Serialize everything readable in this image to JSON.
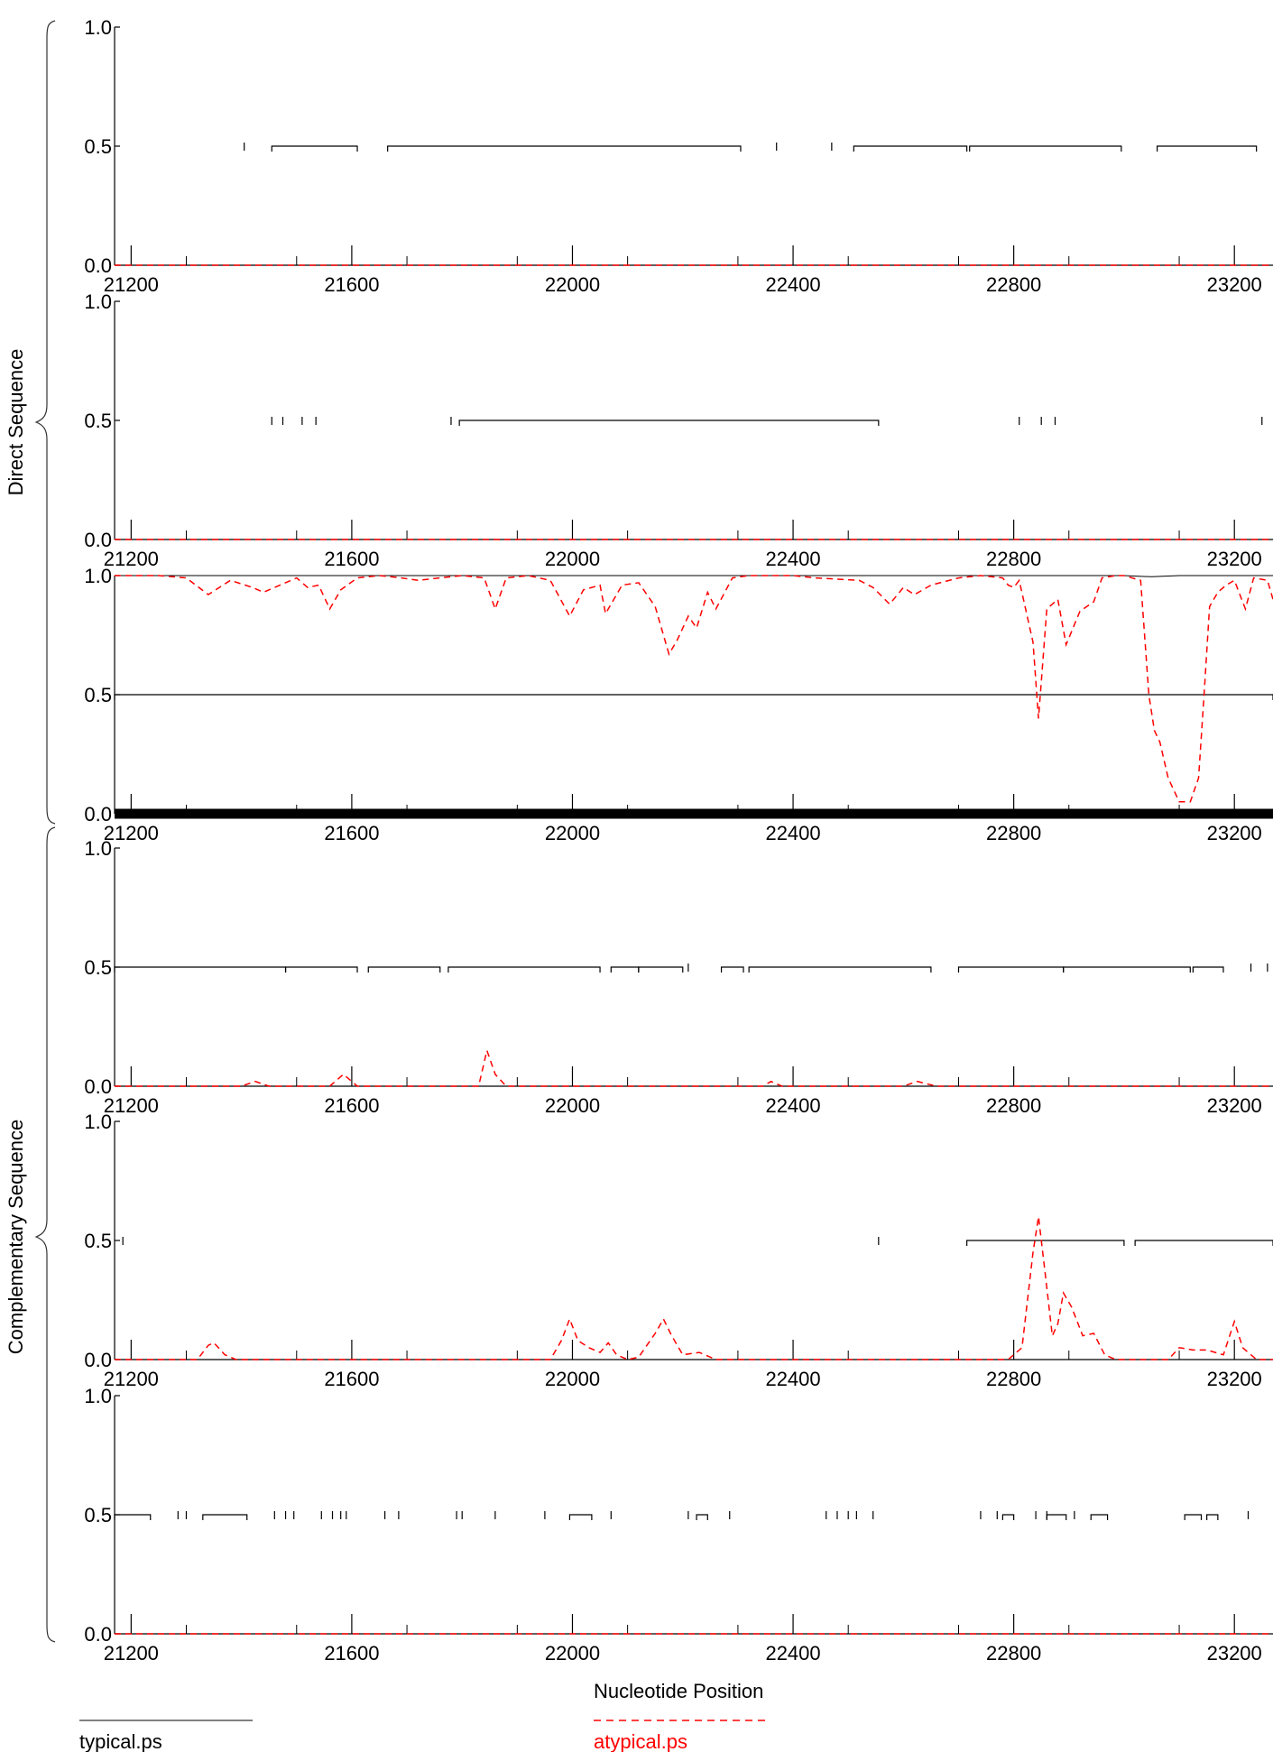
{
  "chart_data": {
    "type": "line",
    "xlabel": "Nucleotide Position",
    "x_ticks": [
      21200,
      21600,
      22000,
      22400,
      22800,
      23200
    ],
    "xlim": [
      21170,
      23270
    ],
    "y_ticks": [
      "0.0",
      "0.5",
      "1.0"
    ],
    "ylim": [
      0,
      1
    ],
    "groups": [
      {
        "label": "Direct Sequence",
        "panels": [
          0,
          1,
          2
        ]
      },
      {
        "label": "Complementary Sequence",
        "panels": [
          3,
          4,
          5
        ]
      }
    ],
    "legend": {
      "placement": "bottom",
      "items": [
        {
          "name": "typical.ps",
          "style": "solid",
          "color": "#000000"
        },
        {
          "name": "atypical.ps",
          "style": "dashed",
          "color": "#ff0000"
        }
      ]
    },
    "panels": [
      {
        "typical": [
          [
            21170,
            0.0
          ],
          [
            23270,
            0.0
          ]
        ],
        "atypical": [
          [
            21170,
            0.0
          ],
          [
            23270,
            0.0
          ]
        ],
        "segments": [
          [
            21455,
            21610
          ],
          [
            21665,
            22305
          ],
          [
            22510,
            22715
          ],
          [
            22720,
            22995
          ],
          [
            23060,
            23240
          ]
        ],
        "stops": [
          21405,
          22370,
          22470
        ]
      },
      {
        "typical": [
          [
            21170,
            0.0
          ],
          [
            23270,
            0.0
          ]
        ],
        "atypical": [
          [
            21170,
            0.0
          ],
          [
            23270,
            0.0
          ]
        ],
        "segments": [
          [
            21795,
            22555
          ]
        ],
        "stops": [
          21455,
          21475,
          21510,
          21535,
          21780,
          22810,
          22850,
          22875,
          23250
        ]
      },
      {
        "typical": [
          [
            21170,
            1.0
          ],
          [
            22800,
            1.0
          ],
          [
            23000,
            1.0
          ],
          [
            23050,
            0.995
          ],
          [
            23100,
            1.0
          ],
          [
            23270,
            1.0
          ]
        ],
        "atypical": [
          [
            21170,
            1.0
          ],
          [
            21250,
            1.0
          ],
          [
            21300,
            0.99
          ],
          [
            21340,
            0.92
          ],
          [
            21380,
            0.98
          ],
          [
            21420,
            0.95
          ],
          [
            21440,
            0.93
          ],
          [
            21480,
            0.97
          ],
          [
            21500,
            0.99
          ],
          [
            21520,
            0.95
          ],
          [
            21540,
            0.96
          ],
          [
            21560,
            0.86
          ],
          [
            21580,
            0.94
          ],
          [
            21610,
            0.99
          ],
          [
            21650,
            1.0
          ],
          [
            21690,
            0.99
          ],
          [
            21720,
            0.98
          ],
          [
            21760,
            0.99
          ],
          [
            21800,
            1.0
          ],
          [
            21840,
            0.99
          ],
          [
            21860,
            0.86
          ],
          [
            21880,
            0.99
          ],
          [
            21920,
            1.0
          ],
          [
            21960,
            0.98
          ],
          [
            21995,
            0.83
          ],
          [
            22020,
            0.94
          ],
          [
            22050,
            0.96
          ],
          [
            22060,
            0.84
          ],
          [
            22090,
            0.96
          ],
          [
            22120,
            0.97
          ],
          [
            22150,
            0.87
          ],
          [
            22175,
            0.67
          ],
          [
            22190,
            0.73
          ],
          [
            22210,
            0.83
          ],
          [
            22225,
            0.78
          ],
          [
            22245,
            0.93
          ],
          [
            22260,
            0.86
          ],
          [
            22290,
            0.99
          ],
          [
            22320,
            1.0
          ],
          [
            22400,
            1.0
          ],
          [
            22440,
            0.99
          ],
          [
            22520,
            0.98
          ],
          [
            22545,
            0.95
          ],
          [
            22575,
            0.88
          ],
          [
            22600,
            0.95
          ],
          [
            22620,
            0.92
          ],
          [
            22650,
            0.96
          ],
          [
            22700,
            0.99
          ],
          [
            22740,
            1.0
          ],
          [
            22780,
            0.99
          ],
          [
            22790,
            0.96
          ],
          [
            22800,
            0.95
          ],
          [
            22810,
            0.98
          ],
          [
            22835,
            0.72
          ],
          [
            22845,
            0.4
          ],
          [
            22860,
            0.86
          ],
          [
            22880,
            0.9
          ],
          [
            22895,
            0.71
          ],
          [
            22920,
            0.85
          ],
          [
            22945,
            0.89
          ],
          [
            22960,
            0.99
          ],
          [
            22985,
            1.0
          ],
          [
            23000,
            1.0
          ],
          [
            23030,
            0.98
          ],
          [
            23045,
            0.5
          ],
          [
            23055,
            0.35
          ],
          [
            23065,
            0.3
          ],
          [
            23080,
            0.15
          ],
          [
            23100,
            0.05
          ],
          [
            23120,
            0.05
          ],
          [
            23135,
            0.15
          ],
          [
            23145,
            0.5
          ],
          [
            23155,
            0.87
          ],
          [
            23170,
            0.93
          ],
          [
            23185,
            0.96
          ],
          [
            23200,
            0.98
          ],
          [
            23220,
            0.86
          ],
          [
            23235,
            0.99
          ],
          [
            23260,
            0.98
          ],
          [
            23270,
            0.9
          ]
        ],
        "segments": [
          [
            21170,
            23270
          ]
        ],
        "stops": []
      },
      {
        "typical": [
          [
            21170,
            0.0
          ],
          [
            23270,
            0.0
          ]
        ],
        "atypical": [
          [
            21170,
            0.0
          ],
          [
            21400,
            0.0
          ],
          [
            21425,
            0.02
          ],
          [
            21450,
            0.0
          ],
          [
            21560,
            0.0
          ],
          [
            21585,
            0.05
          ],
          [
            21610,
            0.0
          ],
          [
            21830,
            0.0
          ],
          [
            21845,
            0.15
          ],
          [
            21860,
            0.05
          ],
          [
            21880,
            0.0
          ],
          [
            22345,
            0.0
          ],
          [
            22360,
            0.02
          ],
          [
            22380,
            0.0
          ],
          [
            22600,
            0.0
          ],
          [
            22625,
            0.02
          ],
          [
            22660,
            0.0
          ],
          [
            23270,
            0.0
          ]
        ],
        "segments": [
          [
            21170,
            21480
          ],
          [
            21480,
            21610
          ],
          [
            21630,
            21760
          ],
          [
            21775,
            22050
          ],
          [
            22070,
            22120
          ],
          [
            22120,
            22200
          ],
          [
            22270,
            22310
          ],
          [
            22320,
            22650
          ],
          [
            22700,
            22890
          ],
          [
            22890,
            23120
          ],
          [
            23125,
            23180
          ]
        ],
        "stops": [
          22210,
          23230,
          23260
        ]
      },
      {
        "typical": [
          [
            21170,
            0.0
          ],
          [
            23270,
            0.0
          ]
        ],
        "atypical": [
          [
            21170,
            0.0
          ],
          [
            21320,
            0.0
          ],
          [
            21340,
            0.06
          ],
          [
            21350,
            0.07
          ],
          [
            21370,
            0.02
          ],
          [
            21390,
            0.0
          ],
          [
            21960,
            0.0
          ],
          [
            21980,
            0.08
          ],
          [
            21995,
            0.17
          ],
          [
            22010,
            0.08
          ],
          [
            22030,
            0.05
          ],
          [
            22050,
            0.03
          ],
          [
            22065,
            0.07
          ],
          [
            22080,
            0.02
          ],
          [
            22100,
            0.0
          ],
          [
            22120,
            0.01
          ],
          [
            22150,
            0.11
          ],
          [
            22165,
            0.17
          ],
          [
            22180,
            0.1
          ],
          [
            22200,
            0.02
          ],
          [
            22230,
            0.03
          ],
          [
            22260,
            0.0
          ],
          [
            22790,
            0.0
          ],
          [
            22815,
            0.05
          ],
          [
            22835,
            0.45
          ],
          [
            22845,
            0.6
          ],
          [
            22855,
            0.4
          ],
          [
            22870,
            0.1
          ],
          [
            22880,
            0.15
          ],
          [
            22890,
            0.28
          ],
          [
            22905,
            0.22
          ],
          [
            22925,
            0.1
          ],
          [
            22945,
            0.11
          ],
          [
            22965,
            0.02
          ],
          [
            22985,
            0.0
          ],
          [
            23080,
            0.0
          ],
          [
            23100,
            0.05
          ],
          [
            23125,
            0.04
          ],
          [
            23150,
            0.04
          ],
          [
            23180,
            0.02
          ],
          [
            23200,
            0.16
          ],
          [
            23215,
            0.05
          ],
          [
            23240,
            0.0
          ],
          [
            23270,
            0.0
          ]
        ],
        "segments": [
          [
            22715,
            23000
          ],
          [
            23020,
            23270
          ]
        ],
        "stops": [
          21185,
          22555
        ]
      },
      {
        "typical": [
          [
            21170,
            0.0
          ],
          [
            23270,
            0.0
          ]
        ],
        "atypical": [
          [
            21170,
            0.0
          ],
          [
            23270,
            0.0
          ]
        ],
        "segments": [
          [
            21170,
            21235
          ],
          [
            21330,
            21410
          ],
          [
            21995,
            22035
          ],
          [
            22225,
            22245
          ],
          [
            22780,
            22800
          ],
          [
            22860,
            22895
          ],
          [
            22940,
            22970
          ],
          [
            23110,
            23140
          ],
          [
            23150,
            23170
          ]
        ],
        "stops": [
          21285,
          21300,
          21460,
          21480,
          21495,
          21545,
          21565,
          21580,
          21590,
          21660,
          21685,
          21790,
          21800,
          21860,
          21950,
          22070,
          22210,
          22285,
          22460,
          22480,
          22500,
          22515,
          22545,
          22740,
          22770,
          22840,
          22860,
          22910,
          23225
        ]
      }
    ]
  }
}
